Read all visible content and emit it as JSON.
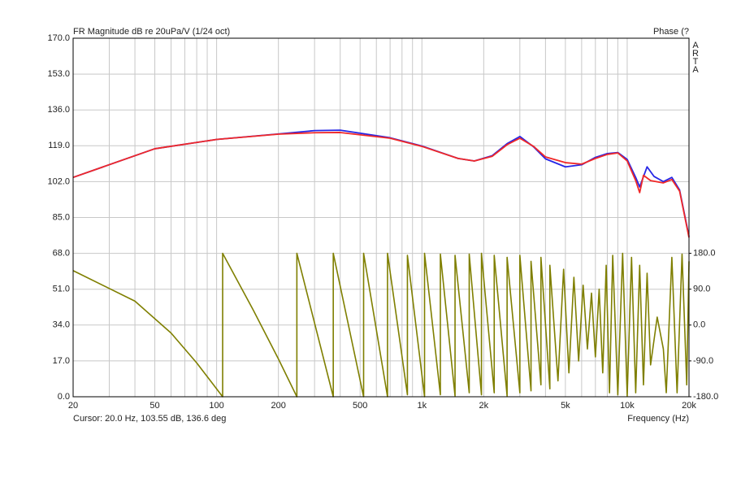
{
  "chart_data": {
    "type": "line",
    "title": "FR Magnitude dB re 20uPa/V (1/24 oct)",
    "y2_title": "Phase (?",
    "brand": "ARTA",
    "cursor_text": "Cursor: 20.0 Hz, 103.55 dB, 136.6 deg",
    "x_label": "Frequency (Hz)",
    "x_scale": "log",
    "grid": true,
    "xlim": [
      20,
      20000
    ],
    "xticks": [
      20,
      50,
      100,
      200,
      500,
      {
        "value": 1000,
        "label": "1k"
      },
      {
        "value": 2000,
        "label": "2k"
      },
      {
        "value": 5000,
        "label": "5k"
      },
      {
        "value": 10000,
        "label": "10k"
      },
      {
        "value": 20000,
        "label": "20k"
      }
    ],
    "x_minor_ticks": [
      30,
      40,
      60,
      70,
      80,
      90,
      300,
      400,
      600,
      700,
      800,
      900,
      3000,
      4000,
      6000,
      7000,
      8000,
      9000
    ],
    "ylim": [
      0,
      170
    ],
    "yticks": [
      {
        "value": 0,
        "label": "0.0"
      },
      {
        "value": 17,
        "label": "17.0"
      },
      {
        "value": 34,
        "label": "34.0"
      },
      {
        "value": 51,
        "label": "51.0"
      },
      {
        "value": 68,
        "label": "68.0"
      },
      {
        "value": 85,
        "label": "85.0"
      },
      {
        "value": 102,
        "label": "102.0"
      },
      {
        "value": 119,
        "label": "119.0"
      },
      {
        "value": 136,
        "label": "136.0"
      },
      {
        "value": 153,
        "label": "153.0"
      },
      {
        "value": 170,
        "label": "170.0"
      }
    ],
    "y2lim": [
      -180,
      720
    ],
    "y2ticks": [
      {
        "value": -180,
        "label": "-180.0"
      },
      {
        "value": -90,
        "label": "-90.0"
      },
      {
        "value": 0,
        "label": "0.0"
      },
      {
        "value": 90,
        "label": "90.0"
      },
      {
        "value": 180,
        "label": "180.0"
      }
    ],
    "series": [
      {
        "color": "#2626e6",
        "x": [
          20,
          50,
          100,
          200,
          300,
          400,
          700,
          1000,
          1500,
          1800,
          2200,
          2600,
          3000,
          3500,
          4000,
          5000,
          6000,
          7000,
          8000,
          9000,
          10000,
          11000,
          11500,
          12500,
          13500,
          15000,
          16500,
          18000,
          20000
        ],
        "values": [
          104,
          117.6,
          122,
          124.6,
          126.2,
          126.4,
          122.8,
          118.9,
          113,
          111.8,
          114.3,
          120,
          123.4,
          118.5,
          112.8,
          109,
          110,
          113.5,
          115.3,
          115.8,
          112.5,
          104,
          99.5,
          109,
          104.5,
          102,
          104,
          98,
          76
        ]
      },
      {
        "color": "#f02828",
        "x": [
          20,
          50,
          100,
          200,
          300,
          400,
          700,
          1000,
          1500,
          1800,
          2200,
          2600,
          3000,
          3500,
          4000,
          5000,
          6000,
          7000,
          8000,
          9000,
          10000,
          11000,
          11500,
          12000,
          13000,
          15000,
          16500,
          18000,
          20000
        ],
        "values": [
          104,
          117.6,
          122,
          124.5,
          125.2,
          125.3,
          122.6,
          118.7,
          113,
          111.8,
          114,
          119.5,
          122.6,
          118.7,
          113.7,
          111,
          110.3,
          113,
          114.9,
          115.6,
          111.8,
          102.5,
          96.8,
          105,
          102.5,
          101.4,
          103,
          97.5,
          75.5
        ]
      },
      {
        "color": "#7f7f00",
        "axis": "y2",
        "x": [
          20,
          40,
          60,
          80,
          107,
          107,
          150,
          200,
          246,
          246,
          370,
          370,
          520,
          520,
          680,
          680,
          850,
          850,
          1030,
          1030,
          1230,
          1230,
          1450,
          1450,
          1700,
          1700,
          1950,
          1950,
          2250,
          2250,
          2600,
          2600,
          3000,
          3000,
          3400,
          3400,
          3800,
          3800,
          4200,
          4200,
          4600,
          4900,
          5200,
          5500,
          5800,
          6100,
          6400,
          6700,
          7000,
          7300,
          7600,
          7900,
          8200,
          8500,
          9000,
          9500,
          10000,
          10500,
          11000,
          11500,
          12000,
          12500,
          13000,
          14000,
          15000,
          15500,
          16500,
          17500,
          18500,
          19500,
          20000
        ],
        "values": [
          136.6,
          60,
          -20,
          -95,
          -180,
          180,
          40,
          -85,
          -180,
          180,
          -180,
          180,
          -180,
          180,
          -180,
          180,
          -175,
          175,
          -180,
          180,
          -175,
          178,
          -178,
          175,
          -170,
          178,
          -175,
          180,
          -170,
          175,
          -178,
          170,
          -170,
          175,
          -165,
          160,
          -150,
          170,
          -160,
          150,
          -140,
          140,
          -120,
          120,
          -90,
          100,
          -60,
          80,
          -80,
          90,
          -120,
          150,
          -170,
          175,
          -175,
          180,
          -178,
          170,
          -170,
          150,
          -150,
          130,
          -100,
          20,
          -60,
          -170,
          170,
          -170,
          178,
          -150,
          160
        ]
      }
    ]
  }
}
